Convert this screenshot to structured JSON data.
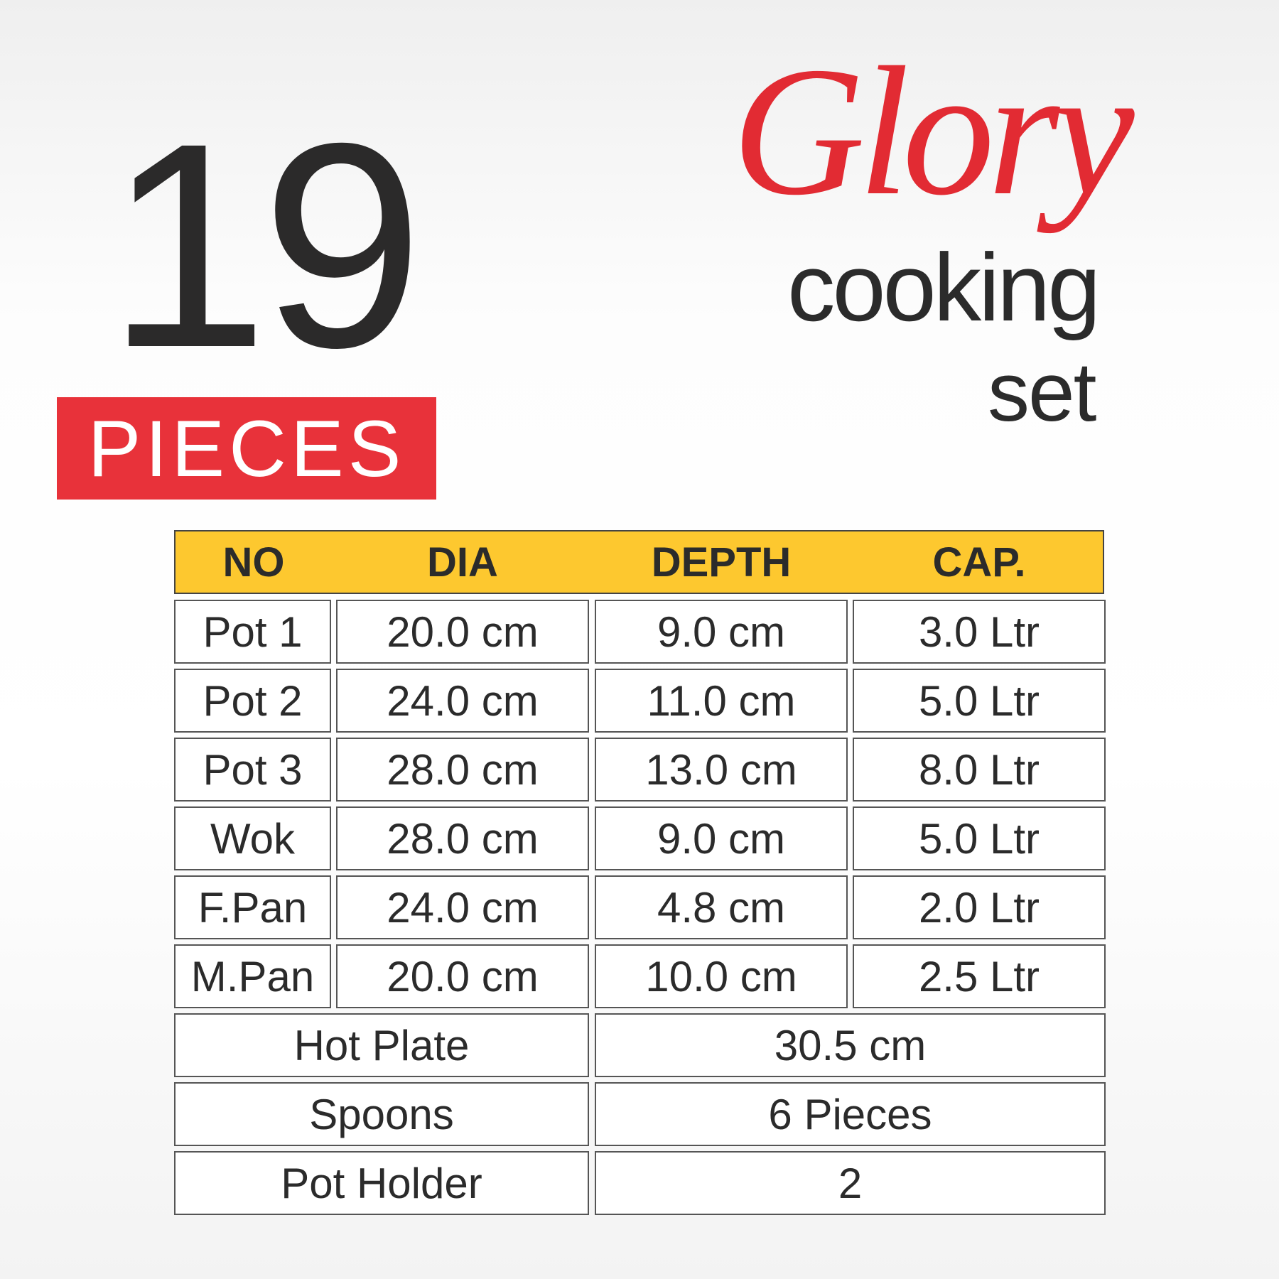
{
  "count": "19",
  "count_label": "PIECES",
  "brand": {
    "script": "Glory",
    "line2": "cooking",
    "line3": "set"
  },
  "colors": {
    "accent_red": "#e8323a",
    "header_yellow": "#fdc82f",
    "text_dark": "#2b2b2b"
  },
  "table": {
    "headers": [
      "NO",
      "DIA",
      "DEPTH",
      "CAP."
    ],
    "rows": [
      [
        "Pot 1",
        "20.0 cm",
        "9.0 cm",
        "3.0 Ltr"
      ],
      [
        "Pot 2",
        "24.0 cm",
        "11.0 cm",
        "5.0 Ltr"
      ],
      [
        "Pot 3",
        "28.0 cm",
        "13.0 cm",
        "8.0 Ltr"
      ],
      [
        "Wok",
        "28.0 cm",
        "9.0 cm",
        "5.0 Ltr"
      ],
      [
        "F.Pan",
        "24.0 cm",
        "4.8 cm",
        "2.0 Ltr"
      ],
      [
        "M.Pan",
        "20.0 cm",
        "10.0 cm",
        "2.5 Ltr"
      ]
    ],
    "extras": [
      [
        "Hot Plate",
        "30.5 cm"
      ],
      [
        "Spoons",
        "6 Pieces"
      ],
      [
        "Pot Holder",
        "2"
      ]
    ]
  }
}
